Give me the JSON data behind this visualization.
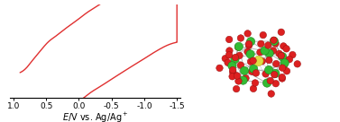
{
  "cv_color": "#e03030",
  "cv_linewidth": 1.0,
  "xlabel": "$E$/V vs. Ag/Ag$^+$",
  "xlim": [
    1.05,
    -1.55
  ],
  "xticks": [
    1.0,
    0.5,
    0.0,
    -0.5,
    -1.0,
    -1.5
  ],
  "xtick_labels": [
    "1.0",
    "0.5",
    "0.0",
    "-0.5",
    "-1.0",
    "-1.5"
  ],
  "background_color": "#ffffff",
  "fig_width": 3.77,
  "fig_height": 1.36,
  "dpi": 100,
  "o_color": "#dd2020",
  "o_edge": "#991010",
  "v_color": "#33bb33",
  "v_edge": "#1a7a1a",
  "br_color": "#dddd44",
  "br_edge": "#aaaa00",
  "bond_color": "#aaaaaa"
}
